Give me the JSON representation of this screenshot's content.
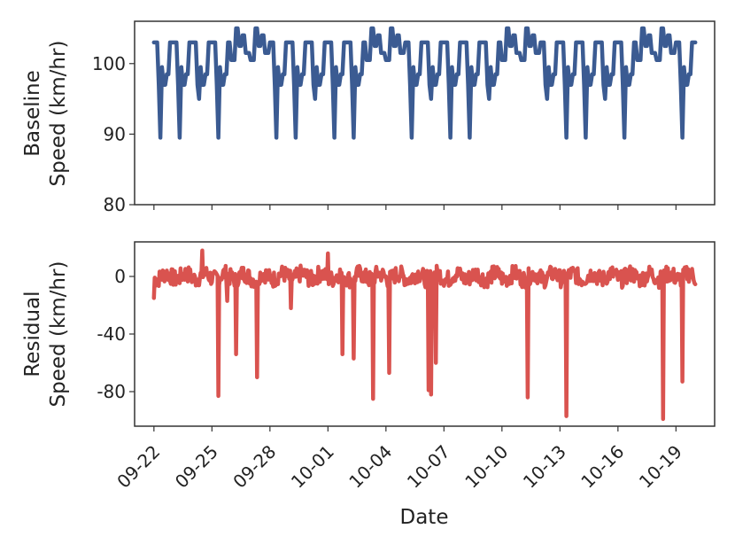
{
  "chart_data": {
    "type": "line",
    "shared_x": {
      "label": "Date",
      "range": [
        "2020-09-21",
        "2020-10-21"
      ],
      "tick_values": [
        "2020-09-22",
        "2020-09-25",
        "2020-09-28",
        "2020-10-01",
        "2020-10-04",
        "2020-10-07",
        "2020-10-10",
        "2020-10-13",
        "2020-10-16",
        "2020-10-19"
      ],
      "tick_labels": [
        "09-22",
        "09-25",
        "09-28",
        "10-01",
        "10-04",
        "10-07",
        "10-10",
        "10-13",
        "10-16",
        "10-19"
      ],
      "data_range": [
        "2020-09-22",
        "2020-10-20"
      ],
      "tick_rotation_deg": 45
    },
    "panels": [
      {
        "key": "baseline",
        "ylabel_lines": [
          "Baseline",
          "Speed (km/hr)"
        ],
        "ylim": [
          80,
          106
        ],
        "y_ticks": [
          80,
          90,
          100
        ],
        "y_tick_labels": [
          "80",
          "90",
          "100"
        ],
        "color": "#3b5b92",
        "profile": {
          "normal_level": 101.5,
          "peak_high": 105,
          "dip_day_peak": 103,
          "drop_low": 89.5,
          "drop_mid": 97,
          "weekend_dates": [
            "2020-09-26",
            "2020-09-27",
            "2020-10-03",
            "2020-10-04",
            "2020-10-10",
            "2020-10-11",
            "2020-10-17",
            "2020-10-18"
          ]
        }
      },
      {
        "key": "residual",
        "ylabel_lines": [
          "Residual",
          "Speed (km/hr)"
        ],
        "ylim": [
          -104,
          24
        ],
        "y_ticks": [
          -80,
          -40,
          0
        ],
        "y_tick_labels": [
          "-80",
          "-40",
          "0"
        ],
        "color": "#d9534f",
        "profile": {
          "noise_level": 0,
          "noise_amplitude": 6,
          "spikes": [
            {
              "date": "2020-09-22T00:00",
              "value": -15
            },
            {
              "date": "2020-09-24T12:00",
              "value": 18
            },
            {
              "date": "2020-09-25T08:00",
              "value": -83
            },
            {
              "date": "2020-09-25T19:00",
              "value": -17
            },
            {
              "date": "2020-09-26T06:00",
              "value": -54
            },
            {
              "date": "2020-09-27T08:00",
              "value": -70
            },
            {
              "date": "2020-09-29T02:00",
              "value": -22
            },
            {
              "date": "2020-10-01T00:00",
              "value": 16
            },
            {
              "date": "2020-10-01T18:00",
              "value": -54
            },
            {
              "date": "2020-10-02T08:00",
              "value": -57
            },
            {
              "date": "2020-10-03T08:00",
              "value": -85
            },
            {
              "date": "2020-10-04T04:00",
              "value": -67
            },
            {
              "date": "2020-10-06T05:00",
              "value": -79
            },
            {
              "date": "2020-10-06T08:00",
              "value": -82
            },
            {
              "date": "2020-10-06T14:00",
              "value": -60
            },
            {
              "date": "2020-10-11T08:00",
              "value": -84
            },
            {
              "date": "2020-10-13T08:00",
              "value": -97
            },
            {
              "date": "2020-10-18T08:00",
              "value": -99
            },
            {
              "date": "2020-10-19T08:00",
              "value": -73
            }
          ]
        }
      }
    ]
  }
}
